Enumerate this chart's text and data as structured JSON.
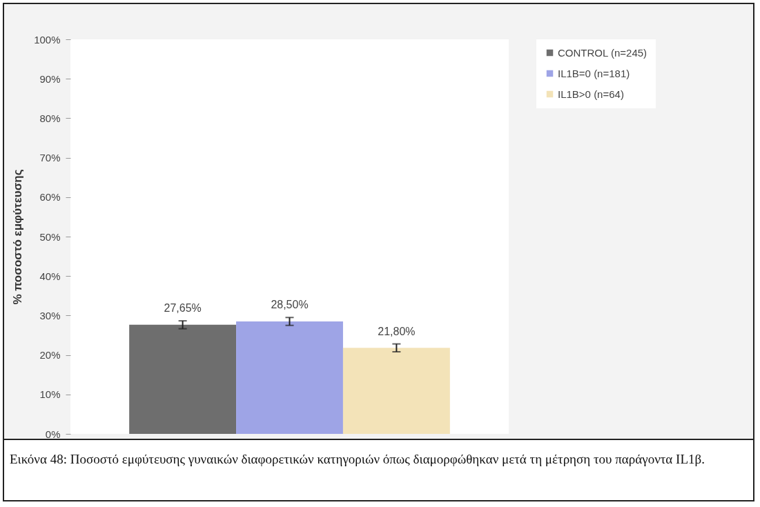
{
  "chart_data": {
    "type": "bar",
    "ylabel": "% ποσοστό εμφύτευσης",
    "categories": [
      null
    ],
    "series": [
      {
        "name": "CONTROL (n=245)",
        "color": "#6e6e6e",
        "values": [
          27.65
        ],
        "errors": [
          1
        ],
        "value_labels": [
          "27,65%"
        ]
      },
      {
        "name": "IL1B=0 (n=181)",
        "color": "#9ea4e6",
        "values": [
          28.5
        ],
        "errors": [
          1
        ],
        "value_labels": [
          "28,50%"
        ]
      },
      {
        "name": "IL1B>0  (n=64)",
        "color": "#f3e3b8",
        "values": [
          21.8
        ],
        "errors": [
          1
        ],
        "value_labels": [
          "21,80%"
        ]
      }
    ],
    "ylim": [
      0,
      100
    ],
    "yticks": [
      {
        "value": 0,
        "label": "0%"
      },
      {
        "value": 10,
        "label": "10%"
      },
      {
        "value": 20,
        "label": "20%"
      },
      {
        "value": 30,
        "label": "30%"
      },
      {
        "value": 40,
        "label": "40%"
      },
      {
        "value": 50,
        "label": "50%"
      },
      {
        "value": 60,
        "label": "60%"
      },
      {
        "value": 70,
        "label": "70%"
      },
      {
        "value": 80,
        "label": "80%"
      },
      {
        "value": 90,
        "label": "90%"
      },
      {
        "value": 100,
        "label": "100%"
      }
    ],
    "grid": false,
    "legend": "right",
    "annotations": [
      "Εικόνα 48: Ποσοστό εμφύτευσης γυναικών διαφορετικών κατηγοριών όπως διαμορφώθηκαν μετά τη μέτρηση του παράγοντα IL1β."
    ]
  }
}
